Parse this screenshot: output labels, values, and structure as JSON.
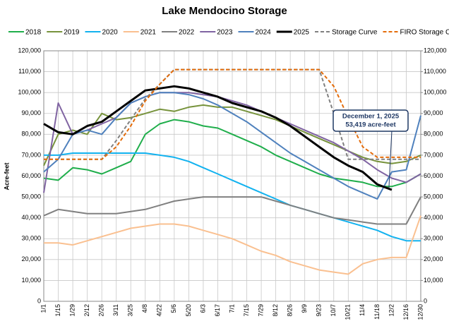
{
  "chart_data": {
    "type": "line",
    "title": "Lake Mendocino Storage",
    "y_label": "Acre-feet",
    "categories": [
      "1/1",
      "1/15",
      "1/29",
      "2/12",
      "2/26",
      "3/11",
      "3/25",
      "4/8",
      "4/22",
      "5/6",
      "5/20",
      "6/3",
      "6/17",
      "7/1",
      "7/15",
      "7/29",
      "8/12",
      "8/26",
      "9/9",
      "9/23",
      "10/7",
      "10/21",
      "11/4",
      "11/18",
      "12/2",
      "12/16",
      "12/30"
    ],
    "series": [
      {
        "name": "2018",
        "color": "#1fae4b",
        "values": [
          59000,
          58000,
          64000,
          63000,
          61000,
          64000,
          67000,
          80000,
          85000,
          87000,
          86000,
          84000,
          83000,
          80000,
          77000,
          74000,
          70000,
          67000,
          64000,
          61000,
          59000,
          58000,
          57000,
          55000,
          55000,
          57000,
          61000
        ]
      },
      {
        "name": "2019",
        "color": "#77933c",
        "values": [
          65000,
          80000,
          82000,
          80000,
          90000,
          87000,
          88000,
          90000,
          92000,
          91000,
          93000,
          94000,
          93000,
          93000,
          91000,
          89000,
          87000,
          84000,
          81000,
          78000,
          75000,
          72000,
          69000,
          67000,
          66000,
          67000,
          70000
        ]
      },
      {
        "name": "2020",
        "color": "#12b2ef",
        "values": [
          70000,
          70000,
          71000,
          71000,
          71000,
          71000,
          71000,
          71000,
          70000,
          69000,
          67000,
          64000,
          61000,
          58000,
          55000,
          52000,
          49000,
          46000,
          44000,
          42000,
          40000,
          38000,
          36000,
          34000,
          31000,
          29000,
          29000
        ]
      },
      {
        "name": "2021",
        "color": "#fac090",
        "values": [
          28000,
          28000,
          27000,
          29000,
          31000,
          33000,
          35000,
          36000,
          37000,
          37000,
          36000,
          34000,
          32000,
          30000,
          27000,
          24000,
          22000,
          19000,
          17000,
          15000,
          14000,
          13000,
          18000,
          20000,
          21000,
          21000,
          41000
        ]
      },
      {
        "name": "2022",
        "color": "#808080",
        "values": [
          41000,
          44000,
          43000,
          42000,
          42000,
          42000,
          43000,
          44000,
          46000,
          48000,
          49000,
          50000,
          50000,
          50000,
          50000,
          50000,
          48000,
          46000,
          44000,
          42000,
          40000,
          39000,
          38000,
          37000,
          37000,
          37000,
          50000
        ]
      },
      {
        "name": "2023",
        "color": "#8064a2",
        "values": [
          52000,
          95000,
          80000,
          82000,
          85000,
          88000,
          95000,
          98000,
          100000,
          100000,
          100000,
          99000,
          98000,
          96000,
          94000,
          91000,
          88000,
          85000,
          82000,
          79000,
          76000,
          72000,
          68000,
          63000,
          59000,
          57000,
          61000
        ]
      },
      {
        "name": "2024",
        "color": "#4f81bd",
        "values": [
          62000,
          68000,
          80000,
          82000,
          80000,
          88000,
          95000,
          98000,
          100000,
          100000,
          99000,
          97000,
          94000,
          90000,
          86000,
          81000,
          76000,
          71000,
          67000,
          63000,
          59000,
          55000,
          52000,
          49000,
          62000,
          63000,
          89000
        ]
      },
      {
        "name": "2025",
        "color": "#000000",
        "values": [
          85000,
          81000,
          80000,
          84000,
          86000,
          91000,
          96000,
          101000,
          102000,
          103000,
          102000,
          100000,
          98000,
          95000,
          93000,
          91000,
          88000,
          84000,
          79000,
          74000,
          69000,
          65000,
          62000,
          56000,
          53419,
          null,
          null
        ]
      },
      {
        "name": "Storage Curve",
        "color": "#808080",
        "dash": true,
        "values": [
          68000,
          68000,
          68000,
          68000,
          68000,
          77000,
          87000,
          97000,
          104000,
          111000,
          111000,
          111000,
          111000,
          111000,
          111000,
          111000,
          111000,
          111000,
          111000,
          111000,
          90000,
          68000,
          68000,
          68000,
          68000,
          68000,
          68000
        ]
      },
      {
        "name": "FIRO Storage Curve",
        "color": "#e46c0a",
        "dash": true,
        "values": [
          68000,
          68000,
          68000,
          68000,
          68000,
          74000,
          84000,
          96000,
          104000,
          111000,
          111000,
          111000,
          111000,
          111000,
          111000,
          111000,
          111000,
          111000,
          111000,
          111000,
          103000,
          88000,
          74000,
          69000,
          69000,
          69000,
          69000
        ]
      }
    ],
    "annotation": {
      "lines": [
        "December 1, 2025",
        "53,419 acre-feet"
      ],
      "series": 7,
      "point": 24
    },
    "ylim": [
      0,
      120000
    ],
    "yticks": [
      0,
      {
        "value": 10000,
        "label": "10,000"
      },
      {
        "value": 20000,
        "label": "20,000"
      },
      {
        "value": 30000,
        "label": "30,000"
      },
      {
        "value": 40000,
        "label": "40,000"
      },
      {
        "value": 50000,
        "label": "50,000"
      },
      {
        "value": 60000,
        "label": "60,000"
      },
      {
        "value": 70000,
        "label": "70,000"
      },
      {
        "value": 80000,
        "label": "80,000"
      },
      {
        "value": 90000,
        "label": "90,000"
      },
      {
        "value": 100000,
        "label": "100,000"
      },
      {
        "value": 110000,
        "label": "110,000"
      },
      {
        "value": 120000,
        "label": "120,000"
      }
    ],
    "y2lim": [
      0,
      120000
    ],
    "y2ticks": [
      0,
      {
        "value": 10000,
        "label": "10,000"
      },
      {
        "value": 20000,
        "label": "20,000"
      },
      {
        "value": 30000,
        "label": "30,000"
      },
      {
        "value": 40000,
        "label": "40,000"
      },
      {
        "value": 50000,
        "label": "50,000"
      },
      {
        "value": 60000,
        "label": "60,000"
      },
      {
        "value": 70000,
        "label": "70,000"
      },
      {
        "value": 80000,
        "label": "80,000"
      },
      {
        "value": 90000,
        "label": "90,000"
      },
      {
        "value": 100000,
        "label": "100,000"
      },
      {
        "value": 110000,
        "label": "110,000"
      },
      {
        "value": 120000,
        "label": "120,000"
      }
    ],
    "grid": true
  }
}
